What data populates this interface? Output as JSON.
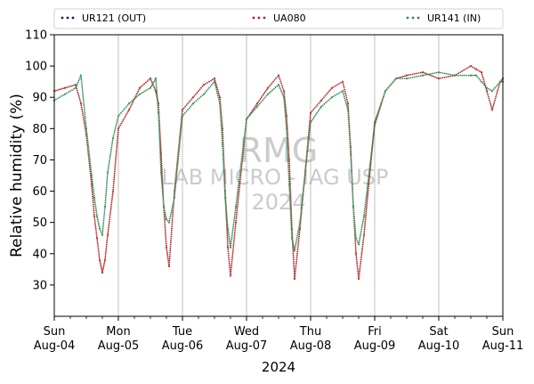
{
  "chart_data": {
    "type": "scatter",
    "xlabel": "2024",
    "ylabel": "Relative humidity (%)",
    "ylim": [
      20,
      110
    ],
    "yticks": [
      30,
      40,
      50,
      60,
      70,
      80,
      90,
      100,
      110
    ],
    "xlim": [
      "2024-08-04",
      "2024-08-11"
    ],
    "x_ticks": [
      {
        "date": "2024-08-04",
        "day": "Sun",
        "date_label": "Aug-04"
      },
      {
        "date": "2024-08-05",
        "day": "Mon",
        "date_label": "Aug-05"
      },
      {
        "date": "2024-08-06",
        "day": "Tue",
        "date_label": "Aug-06"
      },
      {
        "date": "2024-08-07",
        "day": "Wed",
        "date_label": "Aug-07"
      },
      {
        "date": "2024-08-08",
        "day": "Thu",
        "date_label": "Aug-08"
      },
      {
        "date": "2024-08-09",
        "day": "Fri",
        "date_label": "Aug-09"
      },
      {
        "date": "2024-08-10",
        "day": "Sat",
        "date_label": "Aug-10"
      },
      {
        "date": "2024-08-11",
        "day": "Sun",
        "date_label": "Aug-11"
      }
    ],
    "x_grid": "vertical lines at each day",
    "legend_placement": "top, above plot",
    "watermark": {
      "line1": "RMG",
      "line2": "LAB MICRO - IAG USP",
      "line3": "2024"
    },
    "series": [
      {
        "name": "UR121 (OUT)",
        "color": "#1a1a6e",
        "x": [],
        "y": []
      },
      {
        "name": "UA080",
        "color": "#b22222",
        "x": [
          "2024-08-04 00:00",
          "2024-08-04 04:00",
          "2024-08-04 08:00",
          "2024-08-04 10:00",
          "2024-08-04 12:00",
          "2024-08-04 14:00",
          "2024-08-04 15:00",
          "2024-08-04 16:00",
          "2024-08-04 17:00",
          "2024-08-04 18:00",
          "2024-08-04 19:00",
          "2024-08-04 20:00",
          "2024-08-04 22:00",
          "2024-08-05 00:00",
          "2024-08-05 04:00",
          "2024-08-05 08:00",
          "2024-08-05 12:00",
          "2024-08-05 14:00",
          "2024-08-05 15:00",
          "2024-08-05 16:00",
          "2024-08-05 17:00",
          "2024-08-05 18:00",
          "2024-08-05 19:00",
          "2024-08-05 21:00",
          "2024-08-06 00:00",
          "2024-08-06 04:00",
          "2024-08-06 08:00",
          "2024-08-06 12:00",
          "2024-08-06 14:00",
          "2024-08-06 15:00",
          "2024-08-06 16:00",
          "2024-08-06 17:00",
          "2024-08-06 18:00",
          "2024-08-06 20:00",
          "2024-08-07 00:00",
          "2024-08-07 04:00",
          "2024-08-07 08:00",
          "2024-08-07 12:00",
          "2024-08-07 14:00",
          "2024-08-07 15:00",
          "2024-08-07 16:00",
          "2024-08-07 17:00",
          "2024-08-07 18:00",
          "2024-08-07 20:00",
          "2024-08-08 00:00",
          "2024-08-08 04:00",
          "2024-08-08 08:00",
          "2024-08-08 12:00",
          "2024-08-08 14:00",
          "2024-08-08 15:00",
          "2024-08-08 16:00",
          "2024-08-08 17:00",
          "2024-08-08 18:00",
          "2024-08-08 20:00",
          "2024-08-09 00:00",
          "2024-08-09 04:00",
          "2024-08-09 08:00",
          "2024-08-09 12:00",
          "2024-08-09 18:00",
          "2024-08-10 00:00",
          "2024-08-10 06:00",
          "2024-08-10 12:00",
          "2024-08-10 14:00",
          "2024-08-10 16:00",
          "2024-08-10 18:00",
          "2024-08-10 20:00",
          "2024-08-10 23:00",
          "2024-08-11 00:00"
        ],
        "y": [
          92,
          93,
          94,
          88,
          78,
          62,
          52,
          45,
          38,
          34,
          38,
          46,
          60,
          80,
          86,
          93,
          96,
          92,
          88,
          72,
          55,
          42,
          36,
          60,
          86,
          90,
          94,
          96,
          90,
          80,
          60,
          42,
          33,
          50,
          83,
          88,
          93,
          97,
          92,
          84,
          70,
          48,
          32,
          48,
          85,
          89,
          93,
          95,
          88,
          74,
          55,
          40,
          32,
          46,
          82,
          92,
          96,
          97,
          98,
          96,
          97,
          100,
          99,
          98,
          92,
          86,
          95,
          96
        ]
      },
      {
        "name": "UR141 (IN)",
        "color": "#2e8b57",
        "x": [
          "2024-08-04 00:00",
          "2024-08-04 04:00",
          "2024-08-04 08:00",
          "2024-08-04 10:00",
          "2024-08-04 12:00",
          "2024-08-04 14:00",
          "2024-08-04 15:00",
          "2024-08-04 16:00",
          "2024-08-04 17:00",
          "2024-08-04 18:00",
          "2024-08-04 19:00",
          "2024-08-04 20:00",
          "2024-08-04 22:00",
          "2024-08-05 00:00",
          "2024-08-05 04:00",
          "2024-08-05 08:00",
          "2024-08-05 12:00",
          "2024-08-05 14:00",
          "2024-08-05 15:00",
          "2024-08-05 16:00",
          "2024-08-05 17:00",
          "2024-08-05 18:00",
          "2024-08-05 19:00",
          "2024-08-05 21:00",
          "2024-08-06 00:00",
          "2024-08-06 04:00",
          "2024-08-06 08:00",
          "2024-08-06 12:00",
          "2024-08-06 14:00",
          "2024-08-06 15:00",
          "2024-08-06 16:00",
          "2024-08-06 17:00",
          "2024-08-06 18:00",
          "2024-08-06 20:00",
          "2024-08-07 00:00",
          "2024-08-07 04:00",
          "2024-08-07 08:00",
          "2024-08-07 12:00",
          "2024-08-07 14:00",
          "2024-08-07 15:00",
          "2024-08-07 16:00",
          "2024-08-07 17:00",
          "2024-08-07 18:00",
          "2024-08-07 20:00",
          "2024-08-08 00:00",
          "2024-08-08 04:00",
          "2024-08-08 08:00",
          "2024-08-08 12:00",
          "2024-08-08 14:00",
          "2024-08-08 15:00",
          "2024-08-08 16:00",
          "2024-08-08 17:00",
          "2024-08-08 18:00",
          "2024-08-08 20:00",
          "2024-08-09 00:00",
          "2024-08-09 04:00",
          "2024-08-09 08:00",
          "2024-08-09 12:00",
          "2024-08-09 18:00",
          "2024-08-10 00:00",
          "2024-08-10 06:00",
          "2024-08-10 12:00",
          "2024-08-10 14:00",
          "2024-08-10 16:00",
          "2024-08-10 18:00",
          "2024-08-10 20:00",
          "2024-08-10 23:00",
          "2024-08-11 00:00"
        ],
        "y": [
          89,
          91,
          93,
          97,
          80,
          65,
          58,
          52,
          48,
          46,
          55,
          66,
          77,
          84,
          88,
          91,
          93,
          96,
          85,
          66,
          55,
          51,
          50,
          58,
          84,
          88,
          91,
          95,
          88,
          75,
          58,
          48,
          42,
          55,
          83,
          87,
          91,
          94,
          90,
          80,
          62,
          45,
          41,
          50,
          82,
          87,
          90,
          92,
          86,
          72,
          55,
          45,
          43,
          52,
          81,
          92,
          96,
          96,
          97,
          98,
          97,
          97,
          97,
          95,
          93,
          92,
          95,
          95
        ]
      }
    ]
  }
}
